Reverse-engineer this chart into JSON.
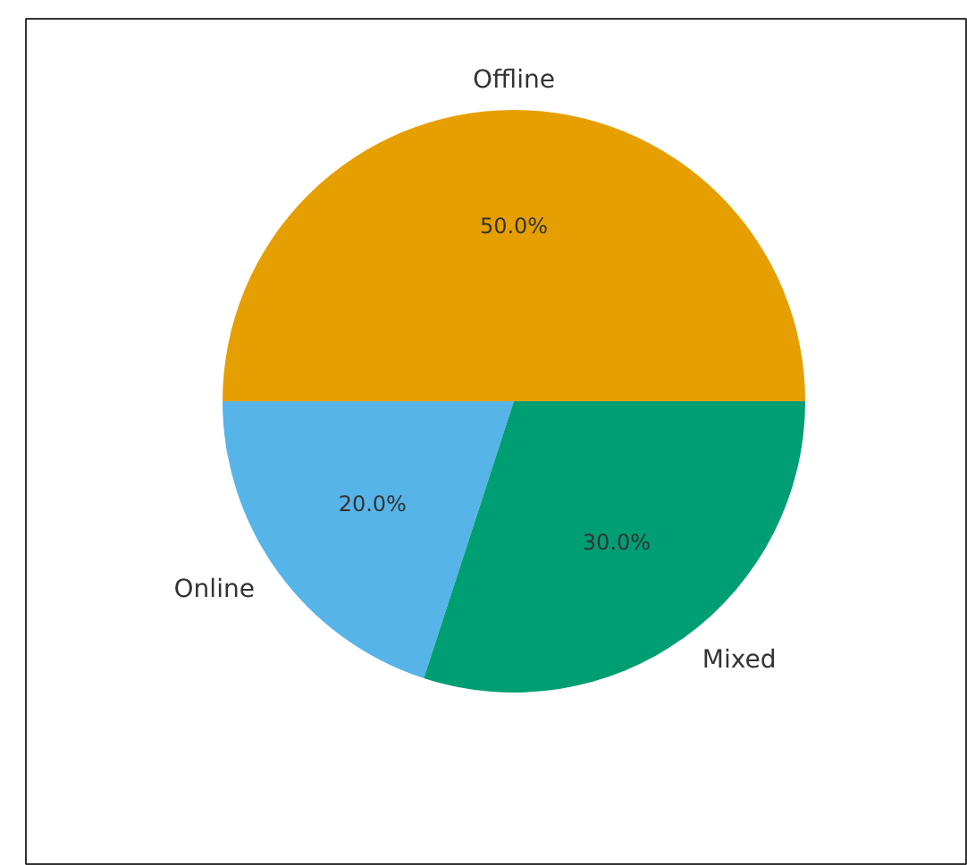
{
  "chart_data": {
    "type": "pie",
    "categories": [
      "Offline",
      "Online",
      "Mixed"
    ],
    "values": [
      50,
      20,
      30
    ],
    "colors": [
      "#e69f00",
      "#56b4e9",
      "#009e73"
    ],
    "value_labels": [
      "50.0%",
      "20.0%",
      "30.0%"
    ]
  }
}
